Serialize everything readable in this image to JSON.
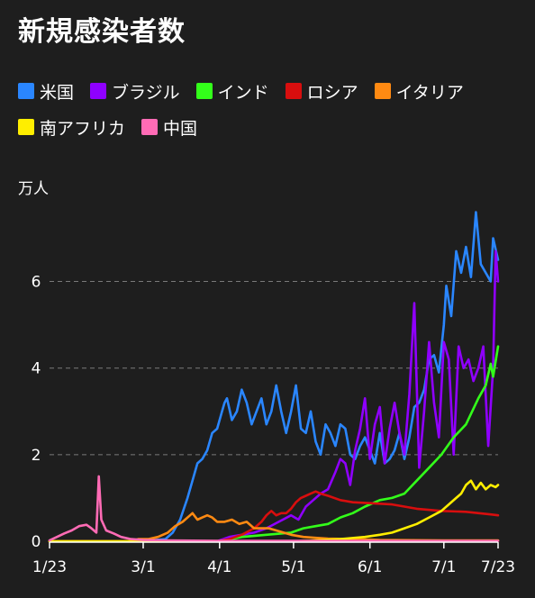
{
  "title": "新規感染者数",
  "unit_label": "万人",
  "legend": {
    "rows": [
      [
        {
          "label": "米国",
          "color": "#2a86ff"
        },
        {
          "label": "ブラジル",
          "color": "#8f00ff"
        },
        {
          "label": "インド",
          "color": "#33ff1a"
        },
        {
          "label": "ロシア",
          "color": "#d80e0e"
        },
        {
          "label": "イタリア",
          "color": "#ff8a12"
        }
      ],
      [
        {
          "label": "南アフリカ",
          "color": "#ffee00"
        },
        {
          "label": "中国",
          "color": "#ff6bb5"
        }
      ]
    ]
  },
  "chart_data": {
    "type": "line",
    "title": "新規感染者数",
    "ylabel": "万人",
    "ylim": [
      0,
      7.8
    ],
    "yticks": [
      0,
      2,
      4,
      6
    ],
    "grid": "horizontal dashed",
    "x_type": "date",
    "x_start": "1/23",
    "x_end": "7/23",
    "xticks": [
      "1/23",
      "3/1",
      "4/1",
      "5/1",
      "6/1",
      "7/1",
      "7/23"
    ],
    "series": [
      {
        "name": "米国",
        "color": "#2a86ff",
        "points": [
          [
            "1/23",
            0
          ],
          [
            "2/29",
            0
          ],
          [
            "3/10",
            0.05
          ],
          [
            "3/13",
            0.2
          ],
          [
            "3/16",
            0.5
          ],
          [
            "3/19",
            1.0
          ],
          [
            "3/21",
            1.4
          ],
          [
            "3/23",
            1.8
          ],
          [
            "3/25",
            1.9
          ],
          [
            "3/27",
            2.1
          ],
          [
            "3/29",
            2.5
          ],
          [
            "3/31",
            2.6
          ],
          [
            "4/2",
            3.0
          ],
          [
            "4/3",
            3.2
          ],
          [
            "4/4",
            3.3
          ],
          [
            "4/6",
            2.8
          ],
          [
            "4/8",
            3.0
          ],
          [
            "4/10",
            3.5
          ],
          [
            "4/12",
            3.2
          ],
          [
            "4/14",
            2.7
          ],
          [
            "4/16",
            3.0
          ],
          [
            "4/18",
            3.3
          ],
          [
            "4/20",
            2.7
          ],
          [
            "4/22",
            3.0
          ],
          [
            "4/24",
            3.6
          ],
          [
            "4/26",
            3.0
          ],
          [
            "4/28",
            2.5
          ],
          [
            "4/30",
            3.0
          ],
          [
            "5/2",
            3.6
          ],
          [
            "5/4",
            2.6
          ],
          [
            "5/6",
            2.5
          ],
          [
            "5/8",
            3.0
          ],
          [
            "5/10",
            2.3
          ],
          [
            "5/12",
            2.0
          ],
          [
            "5/14",
            2.7
          ],
          [
            "5/16",
            2.5
          ],
          [
            "5/18",
            2.2
          ],
          [
            "5/20",
            2.7
          ],
          [
            "5/22",
            2.6
          ],
          [
            "5/24",
            2.0
          ],
          [
            "5/26",
            1.9
          ],
          [
            "5/28",
            2.2
          ],
          [
            "5/30",
            2.4
          ],
          [
            "6/1",
            2.1
          ],
          [
            "6/3",
            1.8
          ],
          [
            "6/5",
            2.5
          ],
          [
            "6/7",
            1.8
          ],
          [
            "6/9",
            1.9
          ],
          [
            "6/11",
            2.1
          ],
          [
            "6/13",
            2.5
          ],
          [
            "6/15",
            1.9
          ],
          [
            "6/17",
            2.4
          ],
          [
            "6/19",
            3.1
          ],
          [
            "6/21",
            3.2
          ],
          [
            "6/23",
            3.5
          ],
          [
            "6/25",
            4.2
          ],
          [
            "6/27",
            4.3
          ],
          [
            "6/29",
            3.9
          ],
          [
            "7/1",
            5.0
          ],
          [
            "7/2",
            5.9
          ],
          [
            "7/4",
            5.2
          ],
          [
            "7/6",
            6.7
          ],
          [
            "7/8",
            6.2
          ],
          [
            "7/10",
            6.8
          ],
          [
            "7/12",
            6.1
          ],
          [
            "7/14",
            7.6
          ],
          [
            "7/16",
            6.4
          ],
          [
            "7/18",
            6.2
          ],
          [
            "7/20",
            6.0
          ],
          [
            "7/21",
            7.0
          ],
          [
            "7/23",
            6.5
          ]
        ]
      },
      {
        "name": "ブラジル",
        "color": "#8f00ff",
        "points": [
          [
            "1/23",
            0
          ],
          [
            "3/31",
            0
          ],
          [
            "4/5",
            0.1
          ],
          [
            "4/10",
            0.15
          ],
          [
            "4/15",
            0.2
          ],
          [
            "4/20",
            0.3
          ],
          [
            "4/25",
            0.45
          ],
          [
            "4/30",
            0.6
          ],
          [
            "5/3",
            0.5
          ],
          [
            "5/6",
            0.8
          ],
          [
            "5/9",
            0.95
          ],
          [
            "5/12",
            1.1
          ],
          [
            "5/15",
            1.2
          ],
          [
            "5/18",
            1.6
          ],
          [
            "5/20",
            1.9
          ],
          [
            "5/22",
            1.8
          ],
          [
            "5/24",
            1.3
          ],
          [
            "5/26",
            2.1
          ],
          [
            "5/28",
            2.6
          ],
          [
            "5/30",
            3.3
          ],
          [
            "6/1",
            1.9
          ],
          [
            "6/3",
            2.7
          ],
          [
            "6/5",
            3.1
          ],
          [
            "6/7",
            1.8
          ],
          [
            "6/9",
            2.6
          ],
          [
            "6/11",
            3.2
          ],
          [
            "6/13",
            2.5
          ],
          [
            "6/15",
            2.0
          ],
          [
            "6/17",
            3.4
          ],
          [
            "6/19",
            5.5
          ],
          [
            "6/21",
            1.7
          ],
          [
            "6/23",
            3.0
          ],
          [
            "6/25",
            4.6
          ],
          [
            "6/27",
            3.2
          ],
          [
            "6/29",
            2.4
          ],
          [
            "7/1",
            4.6
          ],
          [
            "7/3",
            4.2
          ],
          [
            "7/5",
            2.0
          ],
          [
            "7/7",
            4.5
          ],
          [
            "7/9",
            4.0
          ],
          [
            "7/11",
            4.2
          ],
          [
            "7/13",
            3.7
          ],
          [
            "7/15",
            4.0
          ],
          [
            "7/17",
            4.5
          ],
          [
            "7/19",
            2.2
          ],
          [
            "7/21",
            4.0
          ],
          [
            "7/22",
            6.7
          ],
          [
            "7/23",
            6.0
          ]
        ]
      },
      {
        "name": "インド",
        "color": "#33ff1a",
        "points": [
          [
            "1/23",
            0
          ],
          [
            "4/1",
            0
          ],
          [
            "4/10",
            0.1
          ],
          [
            "4/20",
            0.15
          ],
          [
            "4/30",
            0.2
          ],
          [
            "5/5",
            0.3
          ],
          [
            "5/10",
            0.35
          ],
          [
            "5/15",
            0.4
          ],
          [
            "5/20",
            0.55
          ],
          [
            "5/25",
            0.65
          ],
          [
            "5/30",
            0.8
          ],
          [
            "6/5",
            0.95
          ],
          [
            "6/10",
            1.0
          ],
          [
            "6/15",
            1.1
          ],
          [
            "6/20",
            1.4
          ],
          [
            "6/25",
            1.7
          ],
          [
            "6/30",
            2.0
          ],
          [
            "7/5",
            2.4
          ],
          [
            "7/10",
            2.7
          ],
          [
            "7/15",
            3.3
          ],
          [
            "7/18",
            3.6
          ],
          [
            "7/20",
            4.1
          ],
          [
            "7/21",
            3.8
          ],
          [
            "7/23",
            4.5
          ]
        ]
      },
      {
        "name": "ロシア",
        "color": "#d80e0e",
        "points": [
          [
            "1/23",
            0
          ],
          [
            "3/31",
            0
          ],
          [
            "4/5",
            0.05
          ],
          [
            "4/10",
            0.15
          ],
          [
            "4/15",
            0.3
          ],
          [
            "4/18",
            0.45
          ],
          [
            "4/20",
            0.6
          ],
          [
            "4/22",
            0.7
          ],
          [
            "4/24",
            0.6
          ],
          [
            "4/26",
            0.65
          ],
          [
            "4/28",
            0.65
          ],
          [
            "4/30",
            0.75
          ],
          [
            "5/2",
            0.9
          ],
          [
            "5/4",
            1.0
          ],
          [
            "5/6",
            1.05
          ],
          [
            "5/8",
            1.1
          ],
          [
            "5/10",
            1.15
          ],
          [
            "5/12",
            1.1
          ],
          [
            "5/15",
            1.05
          ],
          [
            "5/20",
            0.95
          ],
          [
            "5/25",
            0.9
          ],
          [
            "6/1",
            0.88
          ],
          [
            "6/10",
            0.85
          ],
          [
            "6/20",
            0.75
          ],
          [
            "6/30",
            0.7
          ],
          [
            "7/10",
            0.68
          ],
          [
            "7/20",
            0.62
          ],
          [
            "7/23",
            0.6
          ]
        ]
      },
      {
        "name": "イタリア",
        "color": "#ff8a12",
        "points": [
          [
            "1/23",
            0
          ],
          [
            "2/25",
            0
          ],
          [
            "2/28",
            0.05
          ],
          [
            "3/3",
            0.05
          ],
          [
            "3/7",
            0.1
          ],
          [
            "3/11",
            0.2
          ],
          [
            "3/14",
            0.35
          ],
          [
            "3/17",
            0.45
          ],
          [
            "3/20",
            0.6
          ],
          [
            "3/21",
            0.65
          ],
          [
            "3/23",
            0.5
          ],
          [
            "3/25",
            0.55
          ],
          [
            "3/27",
            0.6
          ],
          [
            "3/29",
            0.55
          ],
          [
            "3/31",
            0.45
          ],
          [
            "4/3",
            0.45
          ],
          [
            "4/6",
            0.5
          ],
          [
            "4/9",
            0.4
          ],
          [
            "4/12",
            0.45
          ],
          [
            "4/15",
            0.3
          ],
          [
            "4/18",
            0.3
          ],
          [
            "4/21",
            0.3
          ],
          [
            "4/24",
            0.25
          ],
          [
            "4/27",
            0.2
          ],
          [
            "4/30",
            0.15
          ],
          [
            "5/5",
            0.1
          ],
          [
            "5/10",
            0.08
          ],
          [
            "5/15",
            0.06
          ],
          [
            "5/25",
            0.05
          ],
          [
            "6/5",
            0.03
          ],
          [
            "7/1",
            0.02
          ],
          [
            "7/23",
            0.02
          ]
        ]
      },
      {
        "name": "南アフリカ",
        "color": "#ffee00",
        "points": [
          [
            "1/23",
            0
          ],
          [
            "5/1",
            0
          ],
          [
            "5/10",
            0.02
          ],
          [
            "5/20",
            0.05
          ],
          [
            "5/30",
            0.1
          ],
          [
            "6/5",
            0.15
          ],
          [
            "6/10",
            0.2
          ],
          [
            "6/15",
            0.3
          ],
          [
            "6/20",
            0.4
          ],
          [
            "6/25",
            0.55
          ],
          [
            "6/30",
            0.7
          ],
          [
            "7/3",
            0.85
          ],
          [
            "7/6",
            1.0
          ],
          [
            "7/8",
            1.1
          ],
          [
            "7/10",
            1.3
          ],
          [
            "7/12",
            1.4
          ],
          [
            "7/14",
            1.2
          ],
          [
            "7/16",
            1.35
          ],
          [
            "7/18",
            1.2
          ],
          [
            "7/20",
            1.3
          ],
          [
            "7/22",
            1.25
          ],
          [
            "7/23",
            1.3
          ]
        ]
      },
      {
        "name": "中国",
        "color": "#ff6bb5",
        "points": [
          [
            "1/23",
            0.02
          ],
          [
            "1/26",
            0.1
          ],
          [
            "1/29",
            0.18
          ],
          [
            "2/1",
            0.25
          ],
          [
            "2/4",
            0.35
          ],
          [
            "2/7",
            0.38
          ],
          [
            "2/9",
            0.3
          ],
          [
            "2/11",
            0.2
          ],
          [
            "2/12",
            1.5
          ],
          [
            "2/13",
            0.5
          ],
          [
            "2/15",
            0.25
          ],
          [
            "2/18",
            0.18
          ],
          [
            "2/21",
            0.1
          ],
          [
            "2/25",
            0.05
          ],
          [
            "3/1",
            0.03
          ],
          [
            "3/10",
            0.02
          ],
          [
            "4/1",
            0.01
          ],
          [
            "7/23",
            0.01
          ]
        ]
      }
    ]
  }
}
